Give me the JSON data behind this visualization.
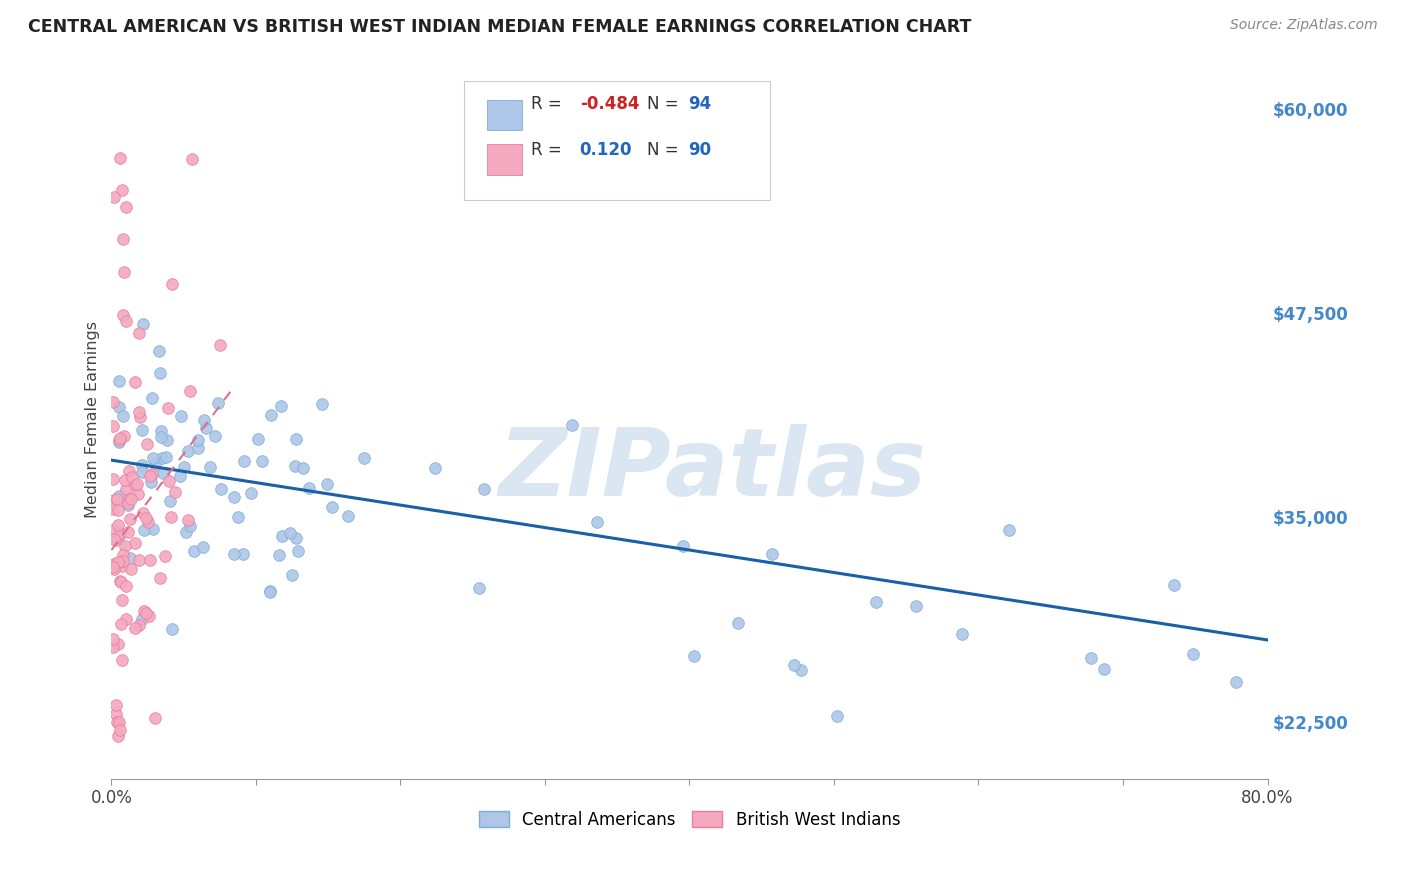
{
  "title": "CENTRAL AMERICAN VS BRITISH WEST INDIAN MEDIAN FEMALE EARNINGS CORRELATION CHART",
  "source": "Source: ZipAtlas.com",
  "ylabel": "Median Female Earnings",
  "xlim": [
    0,
    0.8
  ],
  "ylim": [
    19000,
    63000
  ],
  "yticks": [
    22500,
    35000,
    47500,
    60000
  ],
  "ytick_labels": [
    "$22,500",
    "$35,000",
    "$47,500",
    "$60,000"
  ],
  "color_blue": "#aec6e8",
  "color_blue_edge": "#7bafd4",
  "color_pink": "#f4a9be",
  "color_pink_edge": "#e87da0",
  "color_blue_line": "#1a5fa8",
  "color_pink_line": "#e07090",
  "watermark": "ZIPatlas",
  "blue_line_x0": 0.0,
  "blue_line_y0": 38500,
  "blue_line_x1": 0.8,
  "blue_line_y1": 27500,
  "pink_line_x0": 0.0,
  "pink_line_y0": 33000,
  "pink_line_x1": 0.085,
  "pink_line_y1": 43000
}
